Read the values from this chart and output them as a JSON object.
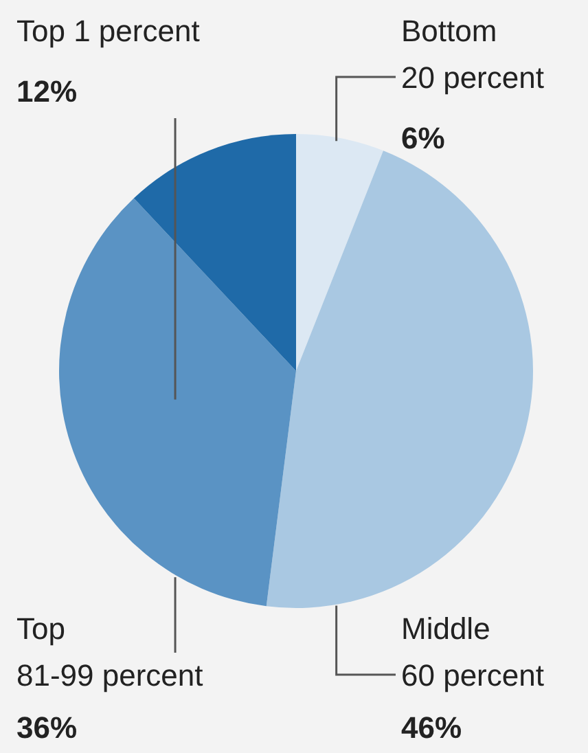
{
  "chart_data": {
    "type": "pie",
    "categories": [
      "Bottom 20 percent",
      "Middle 60 percent",
      "Top 81-99 percent",
      "Top 1 percent"
    ],
    "values": [
      6,
      46,
      36,
      12
    ],
    "colors": [
      "#dce8f3",
      "#a9c8e2",
      "#5a93c4",
      "#1f6aa8"
    ],
    "value_labels": [
      "6%",
      "46%",
      "36%",
      "12%"
    ],
    "legend": false
  }
}
